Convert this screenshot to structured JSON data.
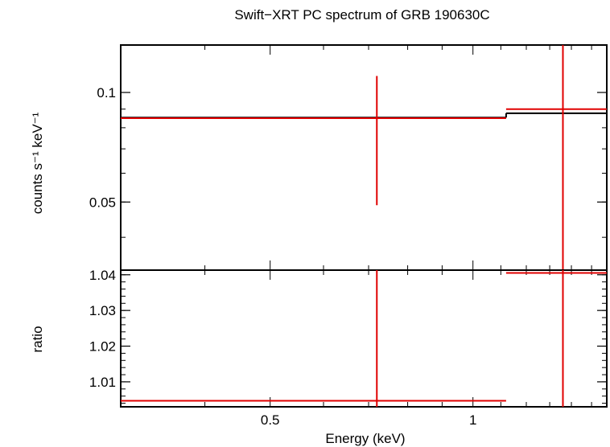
{
  "chart_data": {
    "type": "line",
    "title": "Swift−XRT PC spectrum of GRB 190630C",
    "xlabel": "Energy (keV)",
    "x_scale": "log",
    "xlim": [
      0.3,
      1.58
    ],
    "x_ticks": [
      0.5,
      1
    ],
    "x_tick_labels": [
      "0.5",
      "1"
    ],
    "colors": {
      "data": "#e00000",
      "model": "#000000",
      "frame": "#000000"
    },
    "panels": [
      {
        "name": "spectrum",
        "ylabel": "counts s⁻¹ keV⁻¹",
        "y_scale": "log",
        "ylim": [
          0.0325,
          0.135
        ],
        "y_ticks": [
          0.05,
          0.1
        ],
        "y_tick_labels": [
          "0.05",
          "0.1"
        ],
        "data_points": [
          {
            "x": 0.72,
            "x_lo": 0.3,
            "x_hi": 1.12,
            "y": 0.085,
            "y_lo": 0.049,
            "y_hi": 0.111
          },
          {
            "x": 1.36,
            "x_lo": 1.12,
            "x_hi": 1.58,
            "y": 0.09,
            "y_lo": 0.0325,
            "y_hi": 0.135
          }
        ],
        "model_steps": [
          {
            "x_lo": 0.3,
            "x_hi": 1.12,
            "y": 0.0853
          },
          {
            "x_lo": 1.12,
            "x_hi": 1.58,
            "y": 0.0877
          }
        ]
      },
      {
        "name": "ratio",
        "ylabel": "ratio",
        "y_scale": "linear",
        "ylim": [
          1.003,
          1.0413
        ],
        "y_ticks": [
          1.01,
          1.02,
          1.03,
          1.04
        ],
        "y_tick_labels": [
          "1.01",
          "1.02",
          "1.03",
          "1.04"
        ],
        "data_points": [
          {
            "x": 0.72,
            "x_lo": 0.3,
            "x_hi": 1.12,
            "y": 1.0047,
            "y_lo": 1.003,
            "y_hi": 1.0413
          },
          {
            "x": 1.36,
            "x_lo": 1.12,
            "x_hi": 1.58,
            "y": 1.0405,
            "y_lo": 1.003,
            "y_hi": 1.0413
          }
        ]
      }
    ]
  }
}
